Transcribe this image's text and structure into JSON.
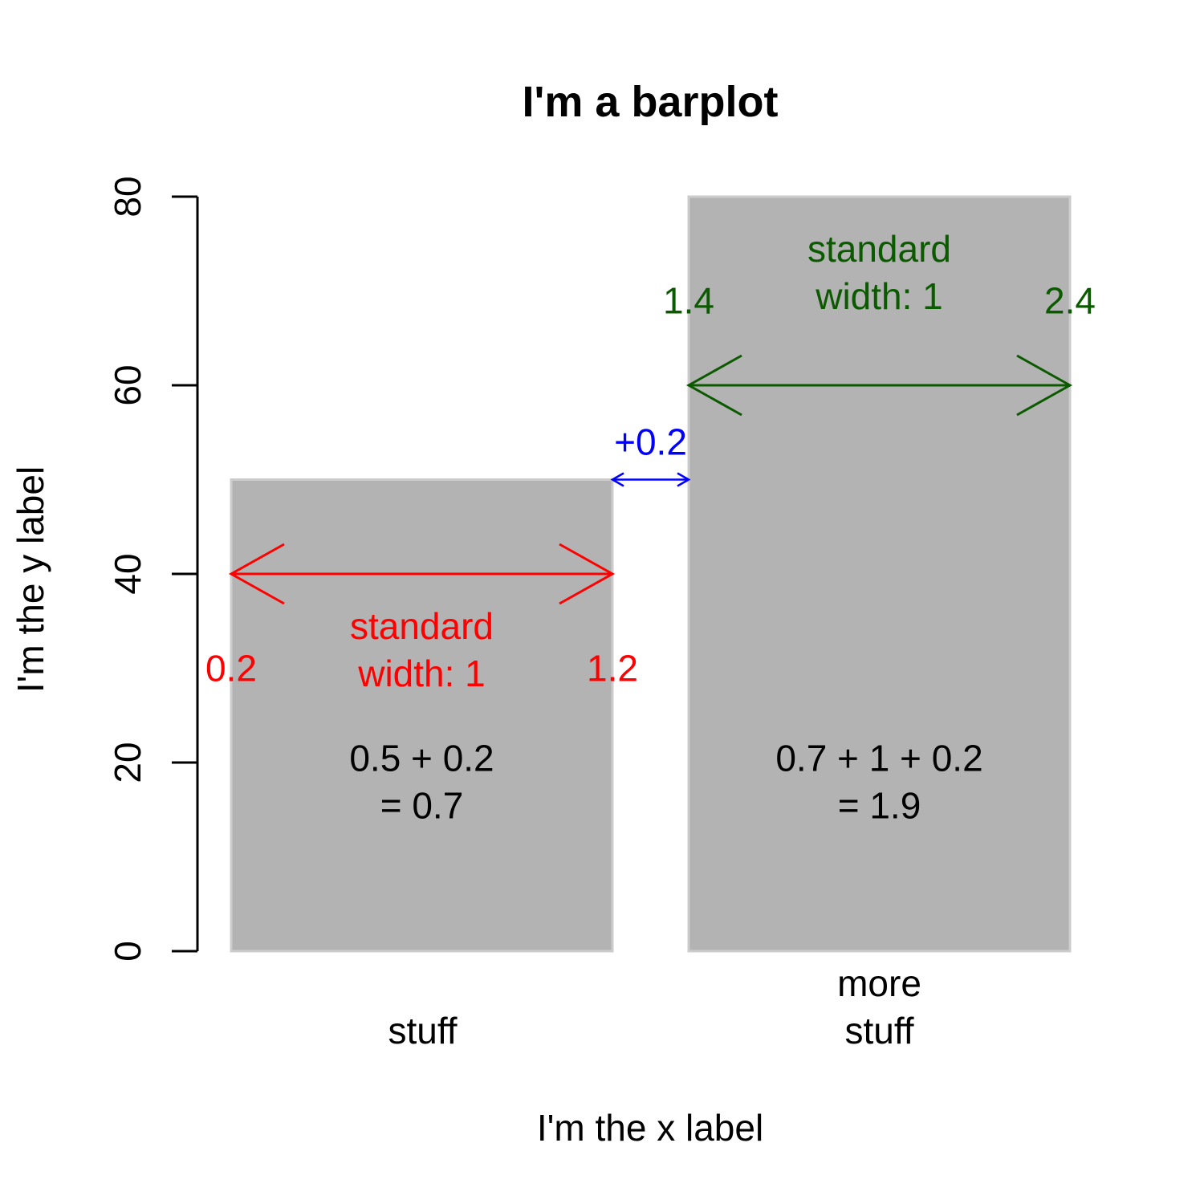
{
  "chart_data": {
    "type": "bar",
    "title": "I'm a barplot",
    "xlabel": "I'm the x label",
    "ylabel": "I'm the y label",
    "categories": [
      [
        "stuff"
      ],
      [
        "more",
        "stuff"
      ]
    ],
    "values": [
      50,
      80
    ],
    "ylim": [
      0,
      80
    ],
    "yticks": [
      0,
      20,
      40,
      60,
      80
    ],
    "bar_width": 1,
    "space": 0.2,
    "bar_color": "#b3b3b3",
    "bar_border_color": "#cccccc",
    "grid": false,
    "annotations": [
      {
        "id": "bar1-width-arrow",
        "color": "#ff0000",
        "arrow": {
          "x0": 0.2,
          "x1": 1.2,
          "y": 40,
          "head": "large"
        },
        "texts": [
          {
            "lines": [
              "standard",
              "width: 1"
            ],
            "x": 0.7,
            "y": 32
          },
          {
            "lines": [
              "0.2"
            ],
            "x": 0.2,
            "y": 30
          },
          {
            "lines": [
              "1.2"
            ],
            "x": 1.2,
            "y": 30
          }
        ]
      },
      {
        "id": "space-arrow",
        "color": "#0000ff",
        "arrow": {
          "x0": 1.2,
          "x1": 1.4,
          "y": 50,
          "head": "small"
        },
        "texts": [
          {
            "lines": [
              "+0.2"
            ],
            "x": 1.3,
            "y": 54
          }
        ]
      },
      {
        "id": "bar2-width-arrow",
        "color": "#0c5a00",
        "arrow": {
          "x0": 1.4,
          "x1": 2.4,
          "y": 60,
          "head": "large"
        },
        "texts": [
          {
            "lines": [
              "standard",
              "width: 1"
            ],
            "x": 1.9,
            "y": 72
          },
          {
            "lines": [
              "1.4"
            ],
            "x": 1.4,
            "y": 69
          },
          {
            "lines": [
              "2.4"
            ],
            "x": 2.4,
            "y": 69
          }
        ]
      },
      {
        "id": "bar1-center-calc",
        "color": "#000000",
        "texts": [
          {
            "lines": [
              "0.5 + 0.2",
              "= 0.7"
            ],
            "x": 0.7,
            "y": 18
          }
        ]
      },
      {
        "id": "bar2-center-calc",
        "color": "#000000",
        "texts": [
          {
            "lines": [
              "0.7 + 1 + 0.2",
              "= 1.9"
            ],
            "x": 1.9,
            "y": 18
          }
        ]
      }
    ]
  }
}
